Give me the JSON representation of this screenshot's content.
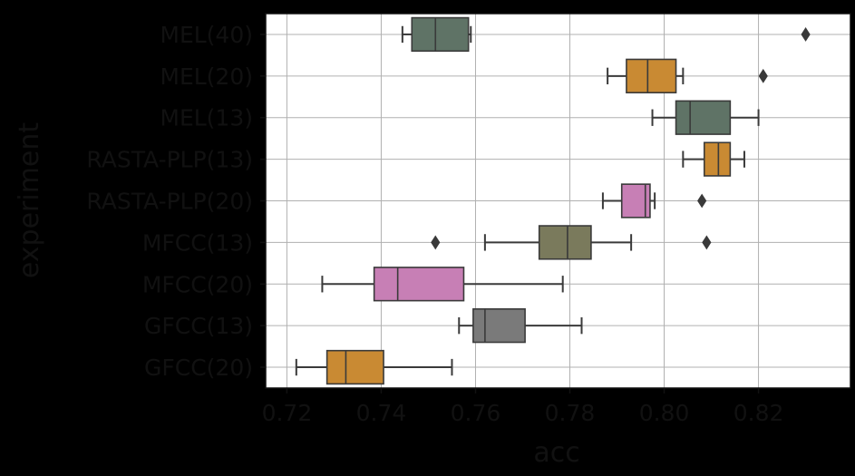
{
  "chart_data": {
    "type": "box",
    "xlabel": "acc",
    "ylabel": "experiment",
    "xlim": [
      0.7155,
      0.8395
    ],
    "xticks": [
      "0.72",
      "0.74",
      "0.76",
      "0.78",
      "0.80",
      "0.82"
    ],
    "grid": true,
    "series": [
      {
        "name": "MEL(40)",
        "color": "#5f7366",
        "min": 0.7445,
        "q1": 0.7465,
        "median": 0.7515,
        "q3": 0.7585,
        "max": 0.759,
        "outliers": [
          0.83
        ]
      },
      {
        "name": "MEL(20)",
        "color": "#c98a33",
        "min": 0.788,
        "q1": 0.792,
        "median": 0.7965,
        "q3": 0.8025,
        "max": 0.804,
        "outliers": [
          0.821
        ]
      },
      {
        "name": "MEL(13)",
        "color": "#5f7366",
        "min": 0.7975,
        "q1": 0.8025,
        "median": 0.8055,
        "q3": 0.814,
        "max": 0.82,
        "outliers": []
      },
      {
        "name": "RASTA-PLP(13)",
        "color": "#c98a33",
        "min": 0.804,
        "q1": 0.8085,
        "median": 0.8115,
        "q3": 0.814,
        "max": 0.817,
        "outliers": []
      },
      {
        "name": "RASTA-PLP(20)",
        "color": "#c77fb5",
        "min": 0.787,
        "q1": 0.791,
        "median": 0.796,
        "q3": 0.797,
        "max": 0.798,
        "outliers": [
          0.808
        ]
      },
      {
        "name": "MFCC(13)",
        "color": "#7a7a5c",
        "min": 0.762,
        "q1": 0.7735,
        "median": 0.7795,
        "q3": 0.7845,
        "max": 0.793,
        "outliers": [
          0.7515,
          0.809
        ]
      },
      {
        "name": "MFCC(20)",
        "color": "#c77fb5",
        "min": 0.7275,
        "q1": 0.7385,
        "median": 0.7435,
        "q3": 0.7575,
        "max": 0.7785,
        "outliers": []
      },
      {
        "name": "GFCC(13)",
        "color": "#7a7a7a",
        "min": 0.7565,
        "q1": 0.7595,
        "median": 0.762,
        "q3": 0.7705,
        "max": 0.7825,
        "outliers": []
      },
      {
        "name": "GFCC(20)",
        "color": "#c98a33",
        "min": 0.722,
        "q1": 0.7285,
        "median": 0.7325,
        "q3": 0.7405,
        "max": 0.755,
        "outliers": []
      }
    ]
  }
}
